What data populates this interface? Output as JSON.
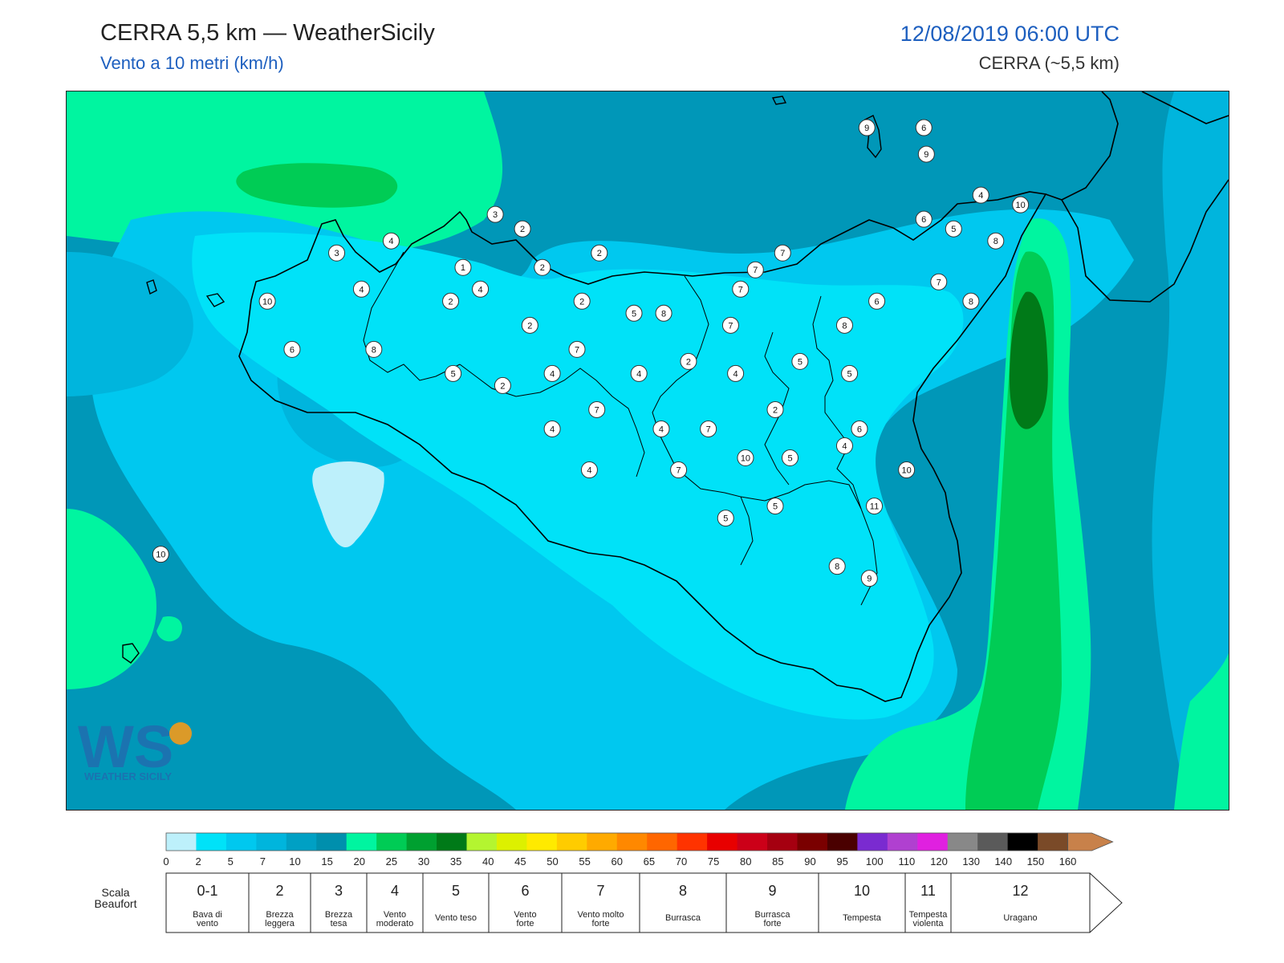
{
  "header": {
    "title": "CERRA 5,5 km — WeatherSicily",
    "subtitle": "Vento a 10 metri (km/h)",
    "datetime": "12/08/2019 06:00 UTC",
    "model": "CERRA (~5,5 km)"
  },
  "logo": {
    "letters": "WS",
    "text": "WEATHER SICILY"
  },
  "colorbar": {
    "ticks": [
      "0",
      "2",
      "5",
      "7",
      "10",
      "15",
      "20",
      "25",
      "30",
      "35",
      "40",
      "45",
      "50",
      "55",
      "60",
      "65",
      "70",
      "75",
      "80",
      "85",
      "90",
      "95",
      "100",
      "110",
      "120",
      "130",
      "140",
      "150",
      "160"
    ],
    "colors": [
      "#bdf0fb",
      "#00e2f8",
      "#00c8ef",
      "#00b5dd",
      "#00a0c4",
      "#008fad",
      "#00f5a0",
      "#00cc55",
      "#00a030",
      "#007a18",
      "#b4f530",
      "#ddf000",
      "#ffea00",
      "#ffcc00",
      "#ffaa00",
      "#ff8800",
      "#ff6600",
      "#ff3300",
      "#e80000",
      "#cc0018",
      "#a50010",
      "#7a0000",
      "#4a0000",
      "#7a2bd0",
      "#b040d0",
      "#e020e0",
      "#888888",
      "#5a5a5a",
      "#000000",
      "#7a4a28",
      "#c8814a"
    ]
  },
  "beaufort": {
    "label": "Scala\nBeaufort",
    "classes": [
      {
        "num": "0-1",
        "desc": "Bava di\nvento"
      },
      {
        "num": "2",
        "desc": "Brezza\nleggera"
      },
      {
        "num": "3",
        "desc": "Brezza\ntesa"
      },
      {
        "num": "4",
        "desc": "Vento\nmoderato"
      },
      {
        "num": "5",
        "desc": "Vento teso"
      },
      {
        "num": "6",
        "desc": "Vento\nforte"
      },
      {
        "num": "7",
        "desc": "Vento molto\nforte"
      },
      {
        "num": "8",
        "desc": "Burrasca"
      },
      {
        "num": "9",
        "desc": "Burrasca\nforte"
      },
      {
        "num": "10",
        "desc": "Tempesta"
      },
      {
        "num": "11",
        "desc": "Tempesta\nviolenta"
      },
      {
        "num": "12",
        "desc": "Uragano"
      }
    ]
  },
  "wind_values": [
    {
      "v": "9",
      "lon": 14.95,
      "lat": 38.8
    },
    {
      "v": "6",
      "lon": 15.18,
      "lat": 38.8
    },
    {
      "v": "9",
      "lon": 15.19,
      "lat": 38.69
    },
    {
      "v": "4",
      "lon": 15.41,
      "lat": 38.52
    },
    {
      "v": "10",
      "lon": 15.57,
      "lat": 38.48
    },
    {
      "v": "3",
      "lon": 13.45,
      "lat": 38.44
    },
    {
      "v": "2",
      "lon": 13.56,
      "lat": 38.38
    },
    {
      "v": "6",
      "lon": 15.18,
      "lat": 38.42
    },
    {
      "v": "5",
      "lon": 15.3,
      "lat": 38.38
    },
    {
      "v": "4",
      "lon": 13.03,
      "lat": 38.33
    },
    {
      "v": "8",
      "lon": 15.47,
      "lat": 38.33
    },
    {
      "v": "3",
      "lon": 12.81,
      "lat": 38.28
    },
    {
      "v": "2",
      "lon": 13.87,
      "lat": 38.28
    },
    {
      "v": "7",
      "lon": 14.61,
      "lat": 38.28
    },
    {
      "v": "1",
      "lon": 13.32,
      "lat": 38.22
    },
    {
      "v": "2",
      "lon": 13.64,
      "lat": 38.22
    },
    {
      "v": "7",
      "lon": 14.5,
      "lat": 38.21
    },
    {
      "v": "7",
      "lon": 15.24,
      "lat": 38.16
    },
    {
      "v": "4",
      "lon": 12.91,
      "lat": 38.13
    },
    {
      "v": "4",
      "lon": 13.39,
      "lat": 38.13
    },
    {
      "v": "7",
      "lon": 14.44,
      "lat": 38.13
    },
    {
      "v": "10",
      "lon": 12.53,
      "lat": 38.08
    },
    {
      "v": "2",
      "lon": 13.27,
      "lat": 38.08
    },
    {
      "v": "2",
      "lon": 13.8,
      "lat": 38.08
    },
    {
      "v": "6",
      "lon": 14.99,
      "lat": 38.08
    },
    {
      "v": "8",
      "lon": 15.37,
      "lat": 38.08
    },
    {
      "v": "5",
      "lon": 14.01,
      "lat": 38.03
    },
    {
      "v": "8",
      "lon": 14.13,
      "lat": 38.03
    },
    {
      "v": "2",
      "lon": 13.59,
      "lat": 37.98
    },
    {
      "v": "7",
      "lon": 14.4,
      "lat": 37.98
    },
    {
      "v": "8",
      "lon": 14.86,
      "lat": 37.98
    },
    {
      "v": "6",
      "lon": 12.63,
      "lat": 37.88
    },
    {
      "v": "8",
      "lon": 12.96,
      "lat": 37.88
    },
    {
      "v": "7",
      "lon": 13.78,
      "lat": 37.88
    },
    {
      "v": "2",
      "lon": 14.23,
      "lat": 37.83
    },
    {
      "v": "5",
      "lon": 14.68,
      "lat": 37.83
    },
    {
      "v": "5",
      "lon": 13.28,
      "lat": 37.78
    },
    {
      "v": "4",
      "lon": 13.68,
      "lat": 37.78
    },
    {
      "v": "4",
      "lon": 14.03,
      "lat": 37.78
    },
    {
      "v": "4",
      "lon": 14.42,
      "lat": 37.78
    },
    {
      "v": "5",
      "lon": 14.88,
      "lat": 37.78
    },
    {
      "v": "2",
      "lon": 13.48,
      "lat": 37.73
    },
    {
      "v": "7",
      "lon": 13.86,
      "lat": 37.63
    },
    {
      "v": "2",
      "lon": 14.58,
      "lat": 37.63
    },
    {
      "v": "4",
      "lon": 13.68,
      "lat": 37.55
    },
    {
      "v": "4",
      "lon": 14.12,
      "lat": 37.55
    },
    {
      "v": "7",
      "lon": 14.31,
      "lat": 37.55
    },
    {
      "v": "6",
      "lon": 14.92,
      "lat": 37.55
    },
    {
      "v": "4",
      "lon": 14.86,
      "lat": 37.48
    },
    {
      "v": "10",
      "lon": 14.46,
      "lat": 37.43
    },
    {
      "v": "5",
      "lon": 14.64,
      "lat": 37.43
    },
    {
      "v": "4",
      "lon": 13.83,
      "lat": 37.38
    },
    {
      "v": "7",
      "lon": 14.19,
      "lat": 37.38
    },
    {
      "v": "10",
      "lon": 15.11,
      "lat": 37.38
    },
    {
      "v": "5",
      "lon": 14.58,
      "lat": 37.23
    },
    {
      "v": "11",
      "lon": 14.98,
      "lat": 37.23
    },
    {
      "v": "5",
      "lon": 14.38,
      "lat": 37.18
    },
    {
      "v": "10",
      "lon": 12.1,
      "lat": 37.03
    },
    {
      "v": "8",
      "lon": 14.83,
      "lat": 36.98
    },
    {
      "v": "9",
      "lon": 14.96,
      "lat": 36.93
    }
  ]
}
